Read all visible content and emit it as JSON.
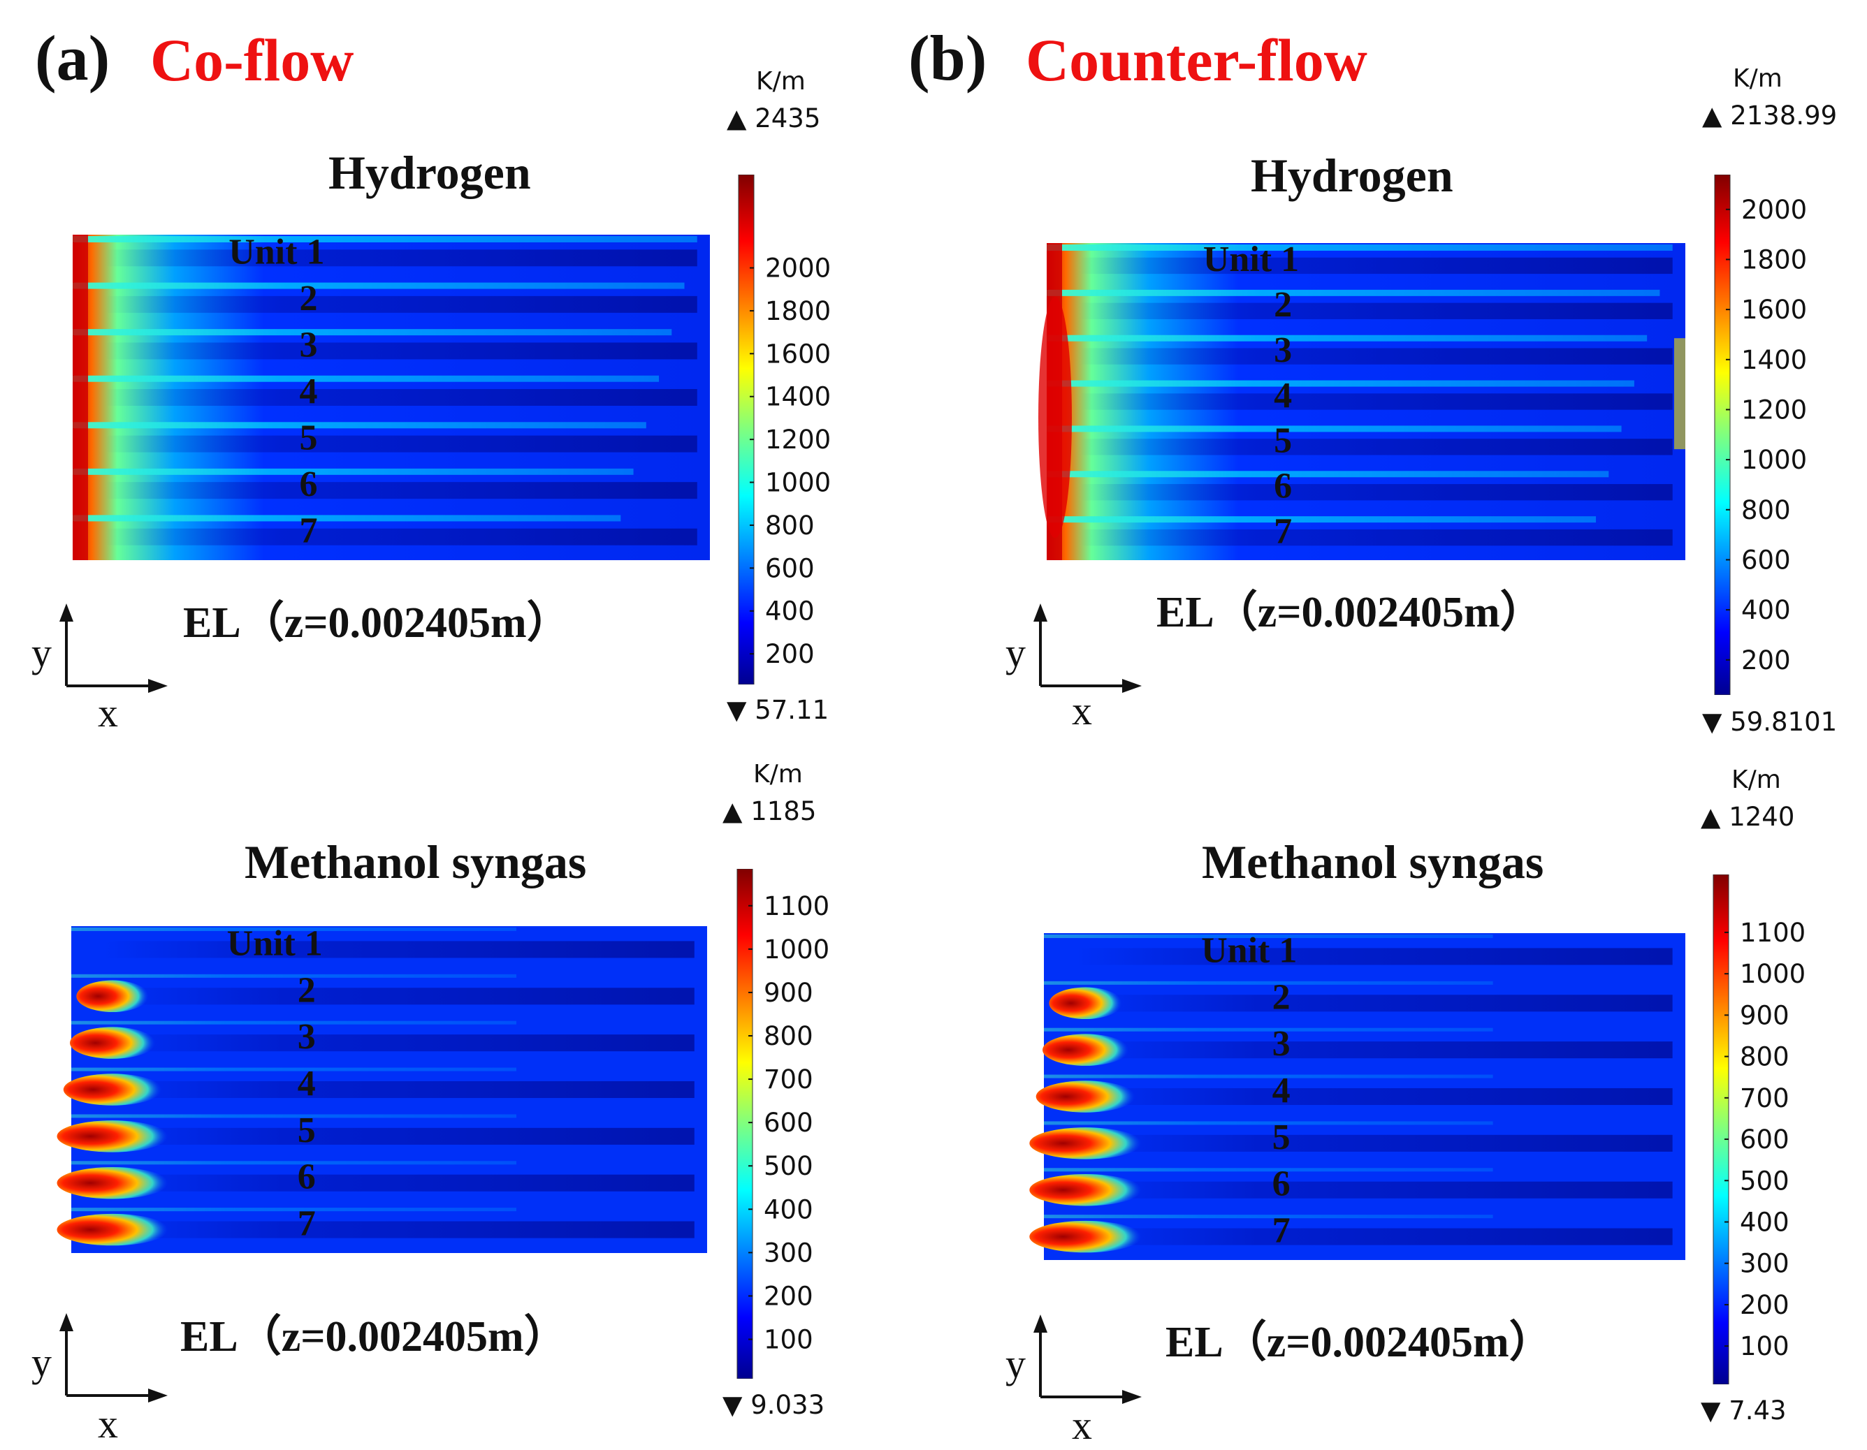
{
  "panels": [
    {
      "letter": "(a)",
      "title": "Co-flow",
      "maps": [
        {
          "title": "Hydrogen",
          "section_label": "EL（z=0.002405m）",
          "unit_labels": [
            "Unit 1",
            "2",
            "3",
            "4",
            "5",
            "6",
            "7"
          ],
          "colorbar": {
            "unit": "K/m",
            "max_label": "▲ 2435",
            "min_label": "▼ 57.11",
            "ticks": [
              2000,
              1800,
              1600,
              1400,
              1200,
              1000,
              800,
              600,
              400,
              200
            ]
          }
        },
        {
          "title": "Methanol syngas",
          "section_label": "EL（z=0.002405m）",
          "unit_labels": [
            "Unit 1",
            "2",
            "3",
            "4",
            "5",
            "6",
            "7"
          ],
          "colorbar": {
            "unit": "K/m",
            "max_label": "▲ 1185",
            "min_label": "▼ 9.033",
            "ticks": [
              1100,
              1000,
              900,
              800,
              700,
              600,
              500,
              400,
              300,
              200,
              100
            ]
          }
        }
      ]
    },
    {
      "letter": "(b)",
      "title": "Counter-flow",
      "maps": [
        {
          "title": "Hydrogen",
          "section_label": "EL（z=0.002405m）",
          "unit_labels": [
            "Unit 1",
            "2",
            "3",
            "4",
            "5",
            "6",
            "7"
          ],
          "colorbar": {
            "unit": "K/m",
            "max_label": "▲ 2138.99",
            "min_label": "▼ 59.8101",
            "ticks": [
              2000,
              1800,
              1600,
              1400,
              1200,
              1000,
              800,
              600,
              400,
              200
            ]
          }
        },
        {
          "title": "Methanol syngas",
          "section_label": "EL（z=0.002405m）",
          "unit_labels": [
            "Unit 1",
            "2",
            "3",
            "4",
            "5",
            "6",
            "7"
          ],
          "colorbar": {
            "unit": "K/m",
            "max_label": "▲ 1240",
            "min_label": "▼ 7.43",
            "ticks": [
              1100,
              1000,
              900,
              800,
              700,
              600,
              500,
              400,
              300,
              200,
              100
            ]
          }
        }
      ]
    }
  ],
  "axes_indicator": {
    "x": "x",
    "y": "y"
  },
  "chart_data": [
    {
      "type": "heatmap",
      "title": "Hydrogen",
      "panel": "(a) Co-flow",
      "xlabel": "x",
      "ylabel": "y",
      "colorbar_label": "K/m",
      "range": [
        57.11,
        2435
      ],
      "categories": [
        "Unit 1",
        "2",
        "3",
        "4",
        "5",
        "6",
        "7"
      ]
    },
    {
      "type": "heatmap",
      "title": "Methanol syngas",
      "panel": "(a) Co-flow",
      "xlabel": "x",
      "ylabel": "y",
      "colorbar_label": "K/m",
      "range": [
        9.033,
        1185
      ],
      "categories": [
        "Unit 1",
        "2",
        "3",
        "4",
        "5",
        "6",
        "7"
      ]
    },
    {
      "type": "heatmap",
      "title": "Hydrogen",
      "panel": "(b) Counter-flow",
      "xlabel": "x",
      "ylabel": "y",
      "colorbar_label": "K/m",
      "range": [
        59.8101,
        2138.99
      ],
      "categories": [
        "Unit 1",
        "2",
        "3",
        "4",
        "5",
        "6",
        "7"
      ]
    },
    {
      "type": "heatmap",
      "title": "Methanol syngas",
      "panel": "(b) Counter-flow",
      "xlabel": "x",
      "ylabel": "y",
      "colorbar_label": "K/m",
      "range": [
        7.43,
        1240
      ],
      "categories": [
        "Unit 1",
        "2",
        "3",
        "4",
        "5",
        "6",
        "7"
      ]
    }
  ]
}
